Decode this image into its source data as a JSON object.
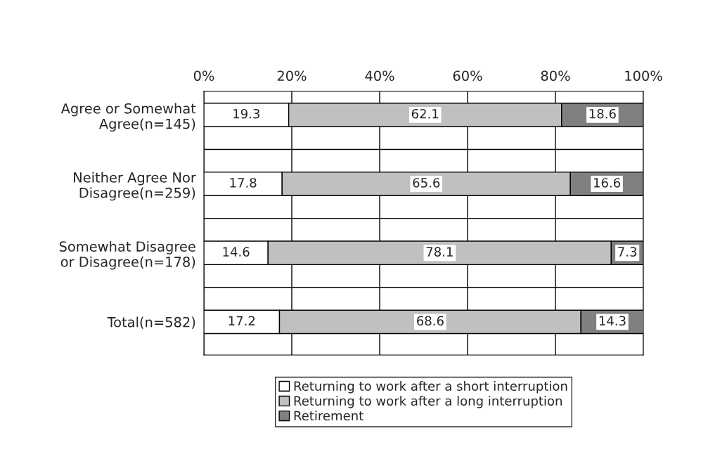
{
  "chart_data": {
    "type": "bar",
    "orientation": "horizontal",
    "stacked": true,
    "categories": [
      "Agree or Somewhat\nAgree(n=145)",
      "Neither Agree Nor\nDisagree(n=259)",
      "Somewhat Disagree\nor Disagree(n=178)",
      "Total(n=582)"
    ],
    "series": [
      {
        "name": "Returning to work after a short interruption",
        "color": "#ffffff",
        "values": [
          19.3,
          17.8,
          14.6,
          17.2
        ]
      },
      {
        "name": "Returning to work after a long interruption",
        "color": "#c0c0c0",
        "values": [
          62.1,
          65.6,
          78.1,
          68.6
        ]
      },
      {
        "name": "Retirement",
        "color": "#808080",
        "values": [
          18.6,
          16.6,
          7.3,
          14.3
        ]
      }
    ],
    "xlim": [
      0,
      100
    ],
    "xticks": [
      {
        "value": 0,
        "label": "0%"
      },
      {
        "value": 20,
        "label": "20%"
      },
      {
        "value": 40,
        "label": "40%"
      },
      {
        "value": 60,
        "label": "60%"
      },
      {
        "value": 80,
        "label": "80%"
      },
      {
        "value": 100,
        "label": "100%"
      }
    ],
    "data_labels": true,
    "grid": true,
    "legend": "bottom"
  }
}
